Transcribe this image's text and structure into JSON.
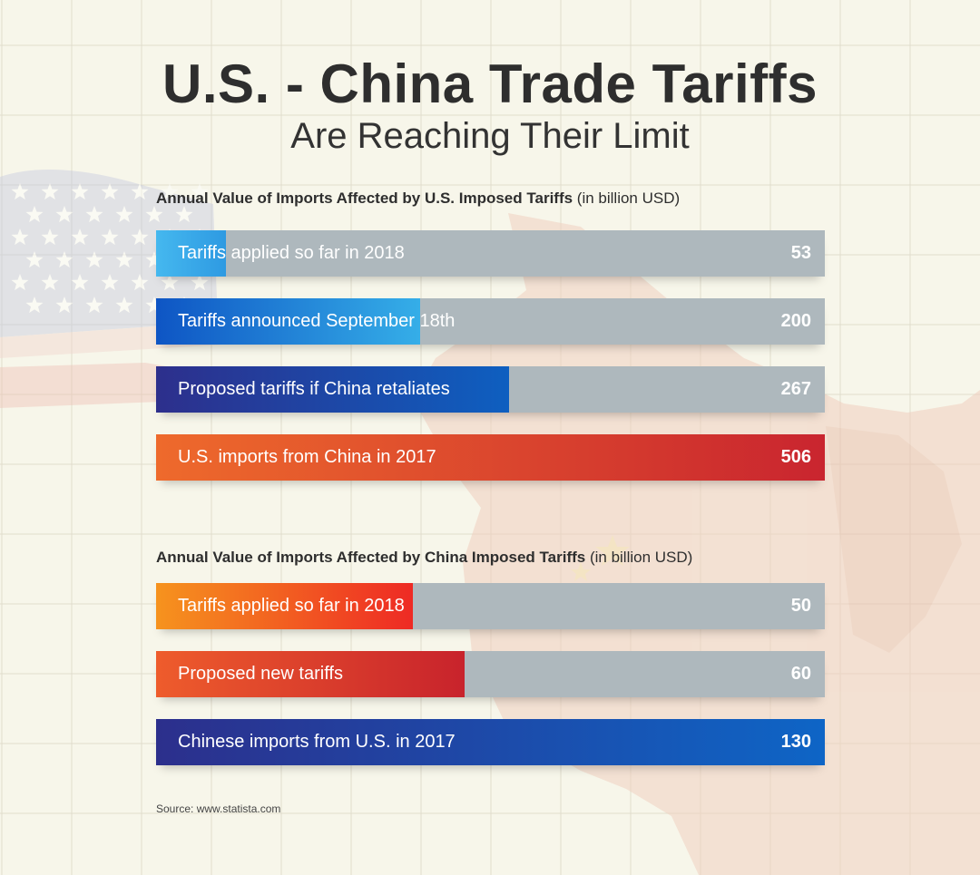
{
  "title": "U.S. - China Trade Tariffs",
  "subtitle": "Are Reaching Their Limit",
  "source": "Source: www.statista.com",
  "chart_data": [
    {
      "type": "bar",
      "orientation": "horizontal",
      "title_bold": "Annual Value of Imports Affected by U.S. Imposed Tariffs",
      "title_unit": " (in billion USD)",
      "xlim": [
        0,
        506
      ],
      "categories": [
        "Tariffs applied so far in 2018",
        "Tariffs announced September 18th",
        "Proposed tariffs if China retaliates",
        "U.S. imports from China in 2017"
      ],
      "values": [
        53,
        200,
        267,
        506
      ],
      "colors": [
        [
          "#45b8ef",
          "#2e9ae2"
        ],
        [
          "#0e55c4",
          "#35aee8"
        ],
        [
          "#2d2f8c",
          "#0e5fc0"
        ],
        [
          "#ee6a2c",
          "#c9252f"
        ]
      ]
    },
    {
      "type": "bar",
      "orientation": "horizontal",
      "title_bold": "Annual Value of Imports Affected by China Imposed Tariffs",
      "title_unit": " (in billion USD)",
      "xlim": [
        0,
        130
      ],
      "categories": [
        "Tariffs applied so far in 2018",
        "Proposed new tariffs",
        "Chinese imports from U.S. in 2017"
      ],
      "values": [
        50,
        60,
        130
      ],
      "colors": [
        [
          "#f6931e",
          "#ee2a24"
        ],
        [
          "#ee5c2c",
          "#c8232c"
        ],
        [
          "#2c2f8c",
          "#0e65c6"
        ]
      ]
    }
  ],
  "colors": {
    "background": "#f7f6ea",
    "bar_track": "#aeb8bd",
    "grid": "#e0ddcc"
  }
}
